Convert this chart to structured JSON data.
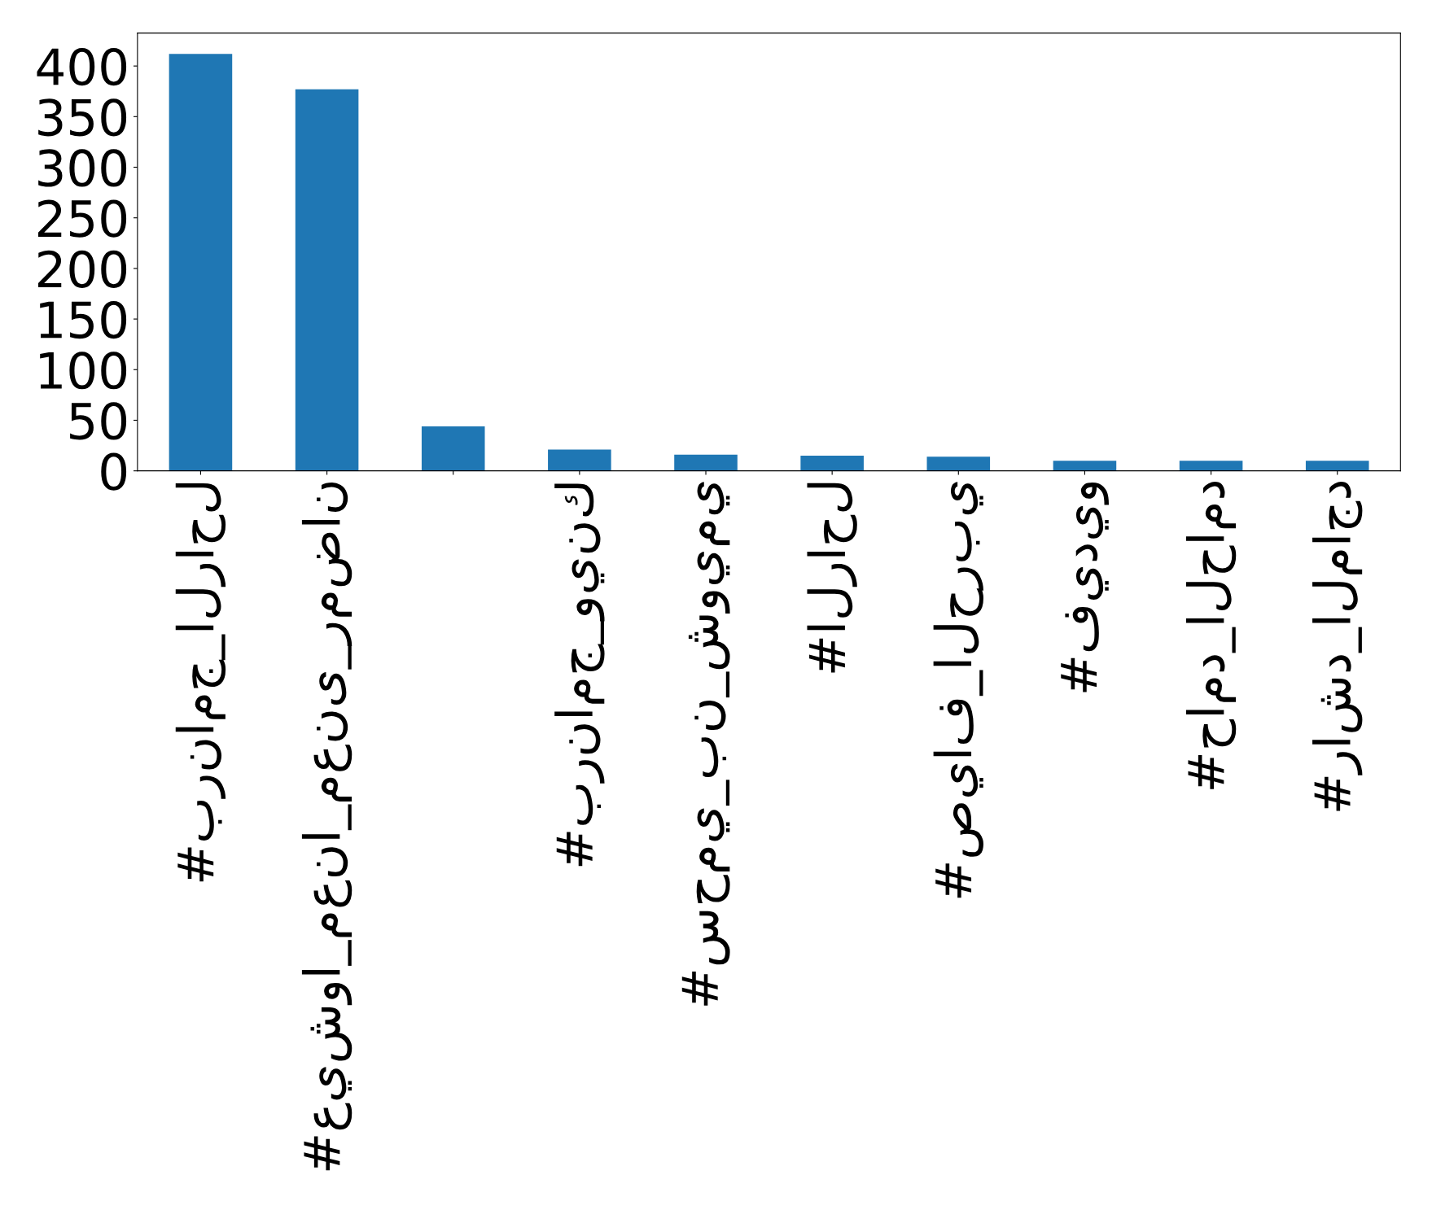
{
  "chart_data": {
    "type": "bar",
    "categories": [
      "#برنامج_الراحل",
      "#عيشوا_معنا_معنى_رمضان",
      null,
      "#برنامج_وينك",
      "#سحمي_بن_شويمي",
      "#الراحل",
      "#صياف_الحربي",
      "#فيديو",
      "#حامد_الحامد",
      "#راشد_الماجد"
    ],
    "values": [
      412,
      377,
      44,
      21,
      16,
      15,
      14,
      10,
      10,
      10
    ],
    "color": "#1f77b4",
    "ylim": [
      0,
      432.6
    ],
    "yticks": [
      0,
      50,
      100,
      150,
      200,
      250,
      300,
      350,
      400
    ],
    "grid": false,
    "legend": false
  }
}
